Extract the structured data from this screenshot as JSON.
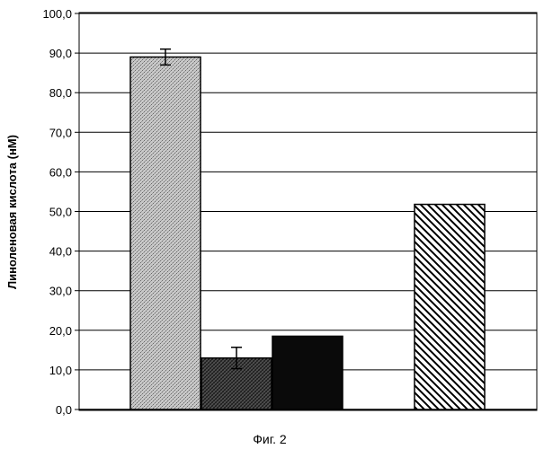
{
  "chart_data": {
    "type": "bar",
    "categories": [
      "",
      "",
      "",
      "",
      ""
    ],
    "values": [
      89.0,
      13.0,
      18.5,
      0,
      51.8
    ],
    "errors": [
      2.0,
      2.7,
      0,
      0,
      0
    ],
    "fills": [
      "light-crosshatch",
      "dark-crosshatch",
      "solid-black",
      "none",
      "diagonal-hatch"
    ],
    "ylabel": "Линоленовая кислота (нМ)",
    "xlabel": "",
    "ylim": [
      0,
      100
    ],
    "yticks": [
      "0,0",
      "10,0",
      "20,0",
      "30,0",
      "40,0",
      "50,0",
      "60,0",
      "70,0",
      "80,0",
      "90,0",
      "100,0"
    ],
    "grid": true,
    "legend": "none"
  },
  "caption": "Фиг. 2"
}
